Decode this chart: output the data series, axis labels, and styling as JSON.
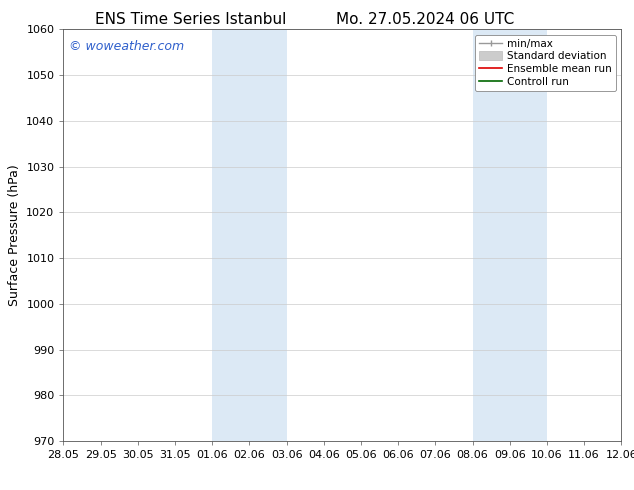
{
  "title_left": "ENS Time Series Istanbul",
  "title_right": "Mo. 27.05.2024 06 UTC",
  "ylabel": "Surface Pressure (hPa)",
  "ylim": [
    970,
    1060
  ],
  "yticks": [
    970,
    980,
    990,
    1000,
    1010,
    1020,
    1030,
    1040,
    1050,
    1060
  ],
  "xtick_labels": [
    "28.05",
    "29.05",
    "30.05",
    "31.05",
    "01.06",
    "02.06",
    "03.06",
    "04.06",
    "05.06",
    "06.06",
    "07.06",
    "08.06",
    "09.06",
    "10.06",
    "11.06",
    "12.06"
  ],
  "xtick_positions": [
    0,
    1,
    2,
    3,
    4,
    5,
    6,
    7,
    8,
    9,
    10,
    11,
    12,
    13,
    14,
    15
  ],
  "shaded_regions": [
    {
      "x_start": 4,
      "x_end": 6,
      "color": "#dce9f5"
    },
    {
      "x_start": 11,
      "x_end": 13,
      "color": "#dce9f5"
    }
  ],
  "watermark_text": "© woweather.com",
  "watermark_color": "#3060cc",
  "background_color": "#ffffff",
  "grid_color": "#cccccc",
  "title_fontsize": 11,
  "tick_fontsize": 8,
  "ylabel_fontsize": 9,
  "watermark_fontsize": 9,
  "legend_fontsize": 7.5
}
